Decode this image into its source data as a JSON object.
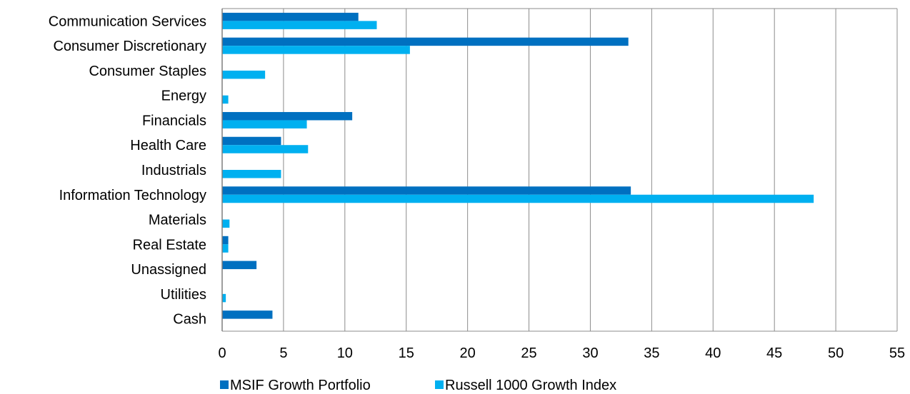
{
  "chart_data": {
    "type": "bar",
    "orientation": "horizontal",
    "categories": [
      "Communication Services",
      "Consumer Discretionary",
      "Consumer Staples",
      "Energy",
      "Financials",
      "Health Care",
      "Industrials",
      "Information Technology",
      "Materials",
      "Real Estate",
      "Unassigned",
      "Utilities",
      "Cash"
    ],
    "series": [
      {
        "name": "MSIF Growth Portfolio",
        "color": "#0070C0",
        "values": [
          11.1,
          33.1,
          null,
          null,
          10.6,
          4.8,
          null,
          33.3,
          null,
          0.5,
          2.8,
          null,
          4.1
        ]
      },
      {
        "name": "Russell 1000 Growth Index",
        "color": "#00B0F0",
        "values": [
          12.6,
          15.3,
          3.5,
          0.5,
          6.9,
          7.0,
          4.8,
          48.2,
          0.6,
          0.5,
          null,
          0.3,
          null
        ]
      }
    ],
    "xlim": [
      0,
      55
    ],
    "xticks": [
      "0",
      "5",
      "10",
      "15",
      "20",
      "25",
      "30",
      "35",
      "40",
      "45",
      "50",
      "55"
    ],
    "grid": true,
    "legend_position": "bottom",
    "title": "",
    "xlabel": "",
    "ylabel": ""
  }
}
